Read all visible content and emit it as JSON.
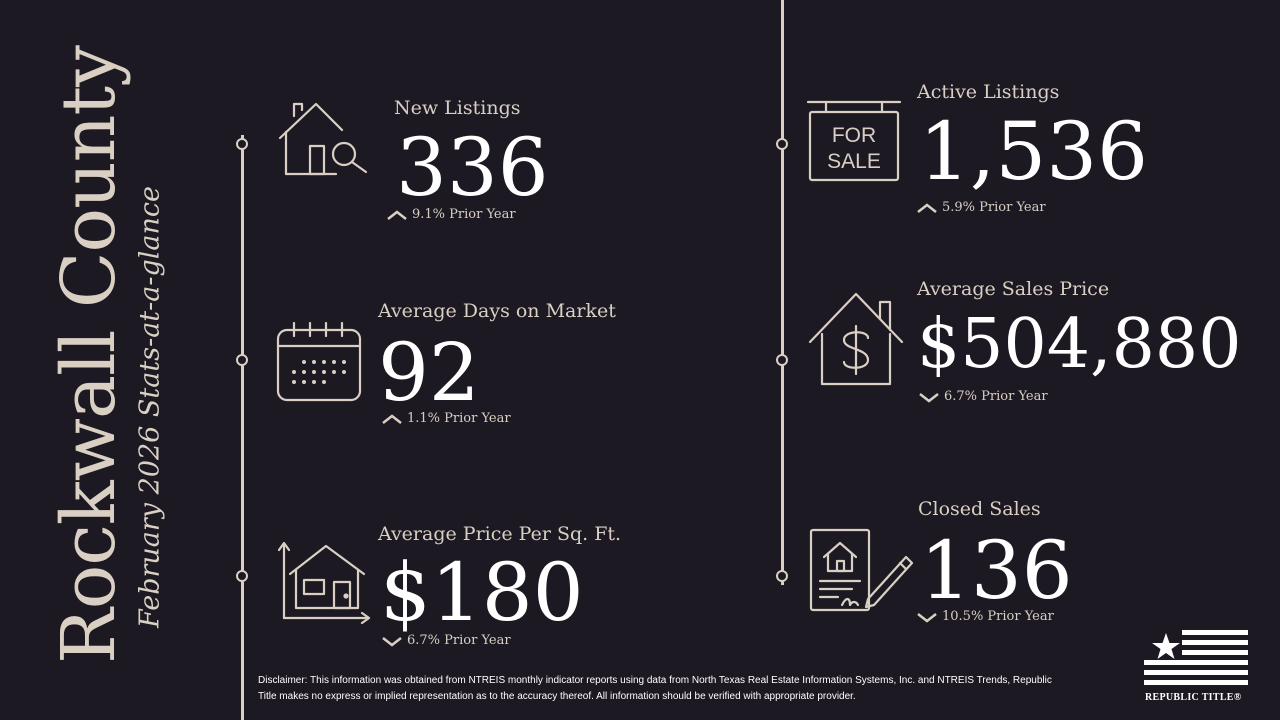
{
  "title": {
    "main": "Rockwall County",
    "subtitle": "February 2026 Stats-at-a-glance"
  },
  "stats": {
    "new_listings": {
      "label": "New Listings",
      "value": "336",
      "direction": "up",
      "change": "9.1% Prior Year",
      "icon": "house-search-icon"
    },
    "avg_days_on_market": {
      "label": "Average Days on Market",
      "value": "92",
      "direction": "up",
      "change": "1.1% Prior Year",
      "icon": "calendar-icon"
    },
    "avg_price_sqft": {
      "label": "Average Price Per Sq. Ft.",
      "value": "$180",
      "direction": "down",
      "change": "6.7% Prior Year",
      "icon": "house-measure-icon"
    },
    "active_listings": {
      "label": "Active Listings",
      "value": "1,536",
      "direction": "up",
      "change": "5.9% Prior Year",
      "icon": "for-sale-sign-icon"
    },
    "avg_sales_price": {
      "label": "Average Sales Price",
      "value": "$504,880",
      "direction": "down",
      "change": "6.7% Prior Year",
      "icon": "house-dollar-icon"
    },
    "closed_sales": {
      "label": "Closed Sales",
      "value": "136",
      "direction": "down",
      "change": "10.5% Prior Year",
      "icon": "contract-signing-icon"
    }
  },
  "sign_text": {
    "line1": "FOR",
    "line2": "SALE"
  },
  "disclaimer": "Disclaimer: This information was obtained from NTREIS monthly indicator reports using data from North Texas Real Estate Information Systems, Inc. and NTREIS Trends, Republic Title makes no express or implied representation as to the accuracy thereof. All information should be verified with appropriate provider.",
  "logo": {
    "text": "REPUBLIC TITLE®"
  },
  "colors": {
    "background": "#1c1923",
    "accent": "#d9cfc3",
    "text": "#ffffff"
  }
}
